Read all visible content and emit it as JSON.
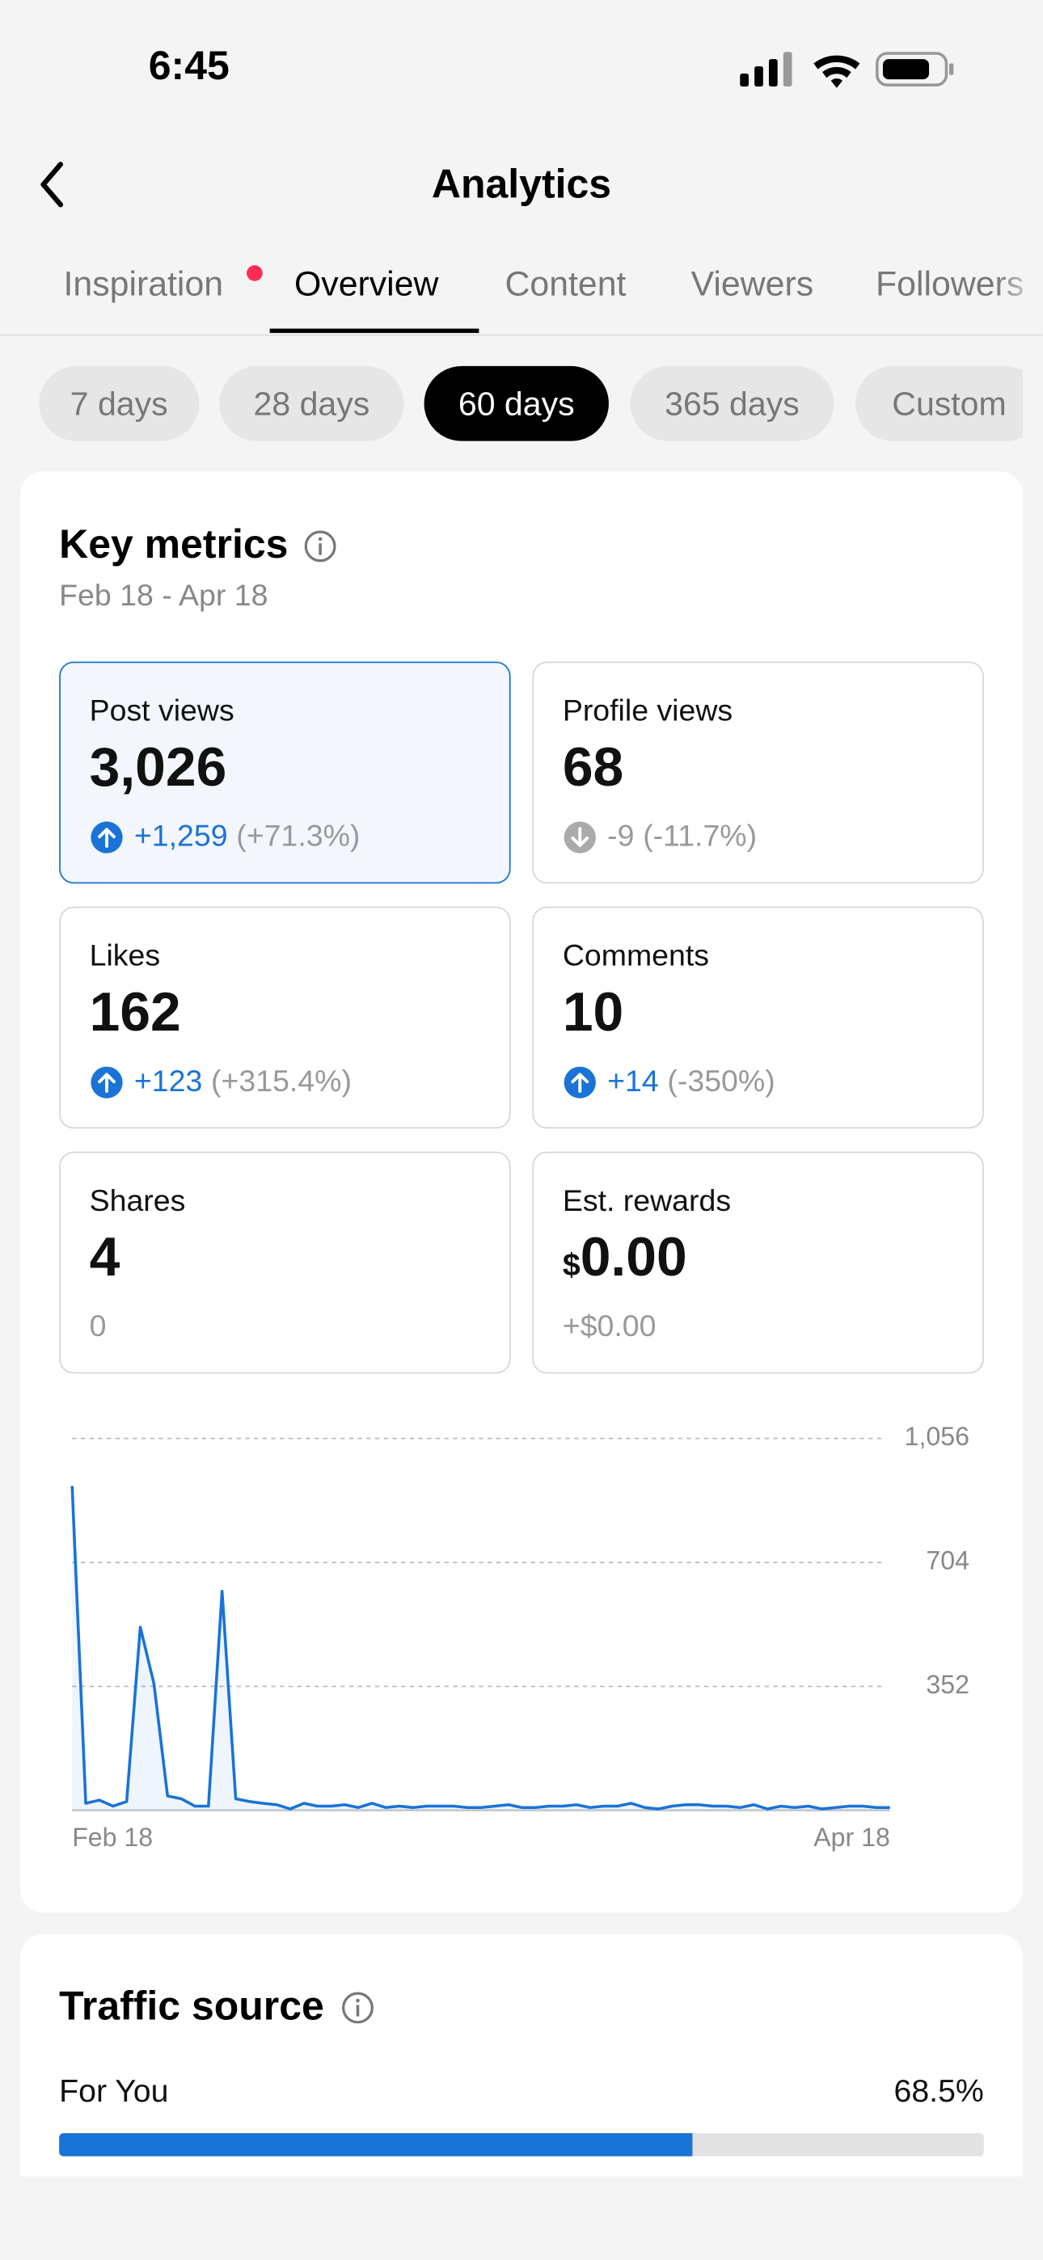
{
  "status_bar": {
    "time": "6:45"
  },
  "header": {
    "title": "Analytics"
  },
  "tabs": [
    "Inspiration",
    "Overview",
    "Content",
    "Viewers",
    "Followers"
  ],
  "time_ranges": [
    "7 days",
    "28 days",
    "60 days",
    "365 days",
    "Custom"
  ],
  "key_metrics": {
    "title": "Key metrics",
    "date_range": "Feb 18 - Apr 18",
    "cards": [
      {
        "label": "Post views",
        "value": "3,026",
        "change": "+1,259",
        "change_pct": "(+71.3%)",
        "trend": "up",
        "selected": true
      },
      {
        "label": "Profile views",
        "value": "68",
        "change": "-9",
        "change_pct": "(-11.7%)",
        "trend": "down"
      },
      {
        "label": "Likes",
        "value": "162",
        "change": "+123",
        "change_pct": "(+315.4%)",
        "trend": "up"
      },
      {
        "label": "Comments",
        "value": "10",
        "change": "+14",
        "change_pct": "(-350%)",
        "trend": "up"
      },
      {
        "label": "Shares",
        "value": "4",
        "change": "0"
      },
      {
        "label": "Est. rewards",
        "currency": "$",
        "value": "0.00",
        "change": "+$0.00"
      }
    ]
  },
  "chart_data": {
    "type": "area",
    "categories": [
      "Feb 18",
      null,
      null,
      null,
      null,
      null,
      null,
      null,
      null,
      null,
      null,
      null,
      null,
      null,
      null,
      null,
      null,
      null,
      null,
      null,
      null,
      null,
      null,
      null,
      null,
      null,
      null,
      null,
      null,
      null,
      null,
      null,
      null,
      null,
      null,
      null,
      null,
      null,
      null,
      null,
      null,
      null,
      null,
      null,
      null,
      null,
      null,
      null,
      null,
      null,
      null,
      null,
      null,
      null,
      null,
      null,
      null,
      null,
      null,
      null,
      "Apr 18"
    ],
    "series": [
      {
        "name": "Post views",
        "color": "#1a73d6",
        "values": [
          921,
          20,
          29,
          12,
          25,
          520,
          360,
          41,
          33,
          12,
          12,
          622,
          33,
          25,
          20,
          16,
          4,
          20,
          12,
          12,
          16,
          8,
          20,
          8,
          12,
          8,
          12,
          12,
          12,
          8,
          8,
          12,
          16,
          8,
          8,
          12,
          12,
          16,
          8,
          12,
          12,
          20,
          8,
          4,
          12,
          16,
          16,
          12,
          12,
          8,
          16,
          4,
          12,
          8,
          12,
          4,
          8,
          12,
          12,
          8,
          8
        ]
      }
    ],
    "ylim": [
      0,
      1056
    ],
    "yticks": [
      352,
      704,
      {
        "value": 1056,
        "label": "1,056"
      }
    ],
    "grid": true
  },
  "traffic_source": {
    "title": "Traffic source",
    "items": [
      {
        "label": "For You",
        "value": 68.5,
        "value_label": "68.5%",
        "color": "#1a73d6"
      }
    ]
  }
}
